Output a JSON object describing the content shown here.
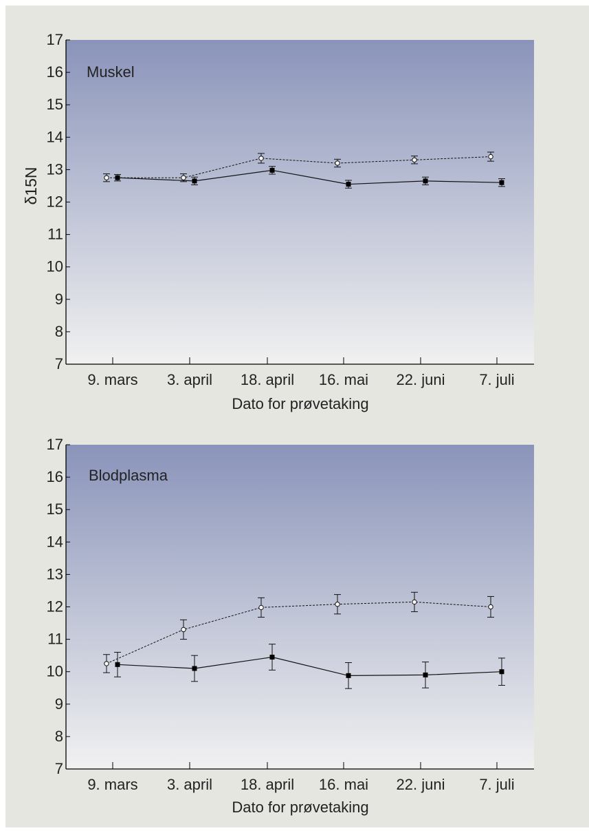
{
  "colors": {
    "background": "#e6e6e1",
    "plot_top": "#8a94ba",
    "plot_bottom": "#f1f1f1",
    "series_open": "#ffffff",
    "series_filled": "#000000",
    "line": "#111111"
  },
  "chart_data": [
    {
      "type": "line",
      "panel_label": "Muskel",
      "xlabel": "Dato for prøvetaking",
      "ylabel": "δ15N",
      "categories": [
        "9. mars",
        "3. april",
        "18. april",
        "16. mai",
        "22. juni",
        "7. juli"
      ],
      "ylim": [
        7,
        17
      ],
      "yticks": [
        7,
        8,
        9,
        10,
        11,
        12,
        13,
        14,
        15,
        16,
        17
      ],
      "grid": false,
      "series": [
        {
          "marker": "open-circle",
          "line": "dashed",
          "values": [
            12.75,
            12.75,
            13.35,
            13.2,
            13.3,
            13.4
          ],
          "errors": [
            0.12,
            0.12,
            0.15,
            0.12,
            0.12,
            0.14
          ]
        },
        {
          "marker": "filled-square",
          "line": "solid",
          "values": [
            12.75,
            12.65,
            12.98,
            12.55,
            12.65,
            12.6
          ],
          "errors": [
            0.1,
            0.12,
            0.12,
            0.12,
            0.12,
            0.12
          ]
        }
      ]
    },
    {
      "type": "line",
      "panel_label": "Blodplasma",
      "xlabel": "Dato for prøvetaking",
      "ylabel": "",
      "categories": [
        "9. mars",
        "3. april",
        "18. april",
        "16. mai",
        "22. juni",
        "7. juli"
      ],
      "ylim": [
        7,
        17
      ],
      "yticks": [
        7,
        8,
        9,
        10,
        11,
        12,
        13,
        14,
        15,
        16,
        17
      ],
      "grid": false,
      "series": [
        {
          "marker": "open-circle",
          "line": "dashed",
          "values": [
            10.25,
            11.3,
            11.98,
            12.08,
            12.15,
            12.0
          ],
          "errors": [
            0.28,
            0.3,
            0.3,
            0.3,
            0.3,
            0.32
          ]
        },
        {
          "marker": "filled-square",
          "line": "solid",
          "values": [
            10.22,
            10.1,
            10.45,
            9.88,
            9.9,
            10.0
          ],
          "errors": [
            0.38,
            0.4,
            0.4,
            0.4,
            0.4,
            0.42
          ]
        }
      ]
    }
  ]
}
